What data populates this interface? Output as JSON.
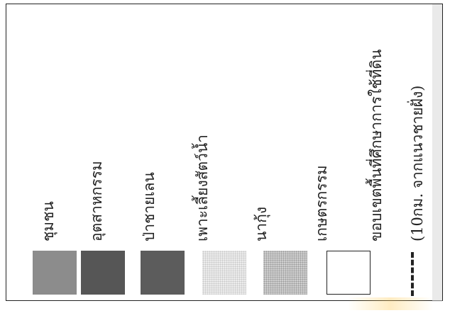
{
  "legend": {
    "items": [
      {
        "label": "ชุมชน",
        "swatch": "solid",
        "color": "#8c8c8c"
      },
      {
        "label": "อุตสาหกรรม",
        "swatch": "solid",
        "color": "#565656"
      },
      {
        "label": "ป่าชายเลน",
        "swatch": "solid",
        "color": "#5c5c5c"
      },
      {
        "label": "เพาะเลี้ยงสัตว์น้ำ",
        "swatch": "stipple-light",
        "color": "#e6e6e6"
      },
      {
        "label": "นากุ้ง",
        "swatch": "stipple-dark",
        "color": "#bdbdbd"
      },
      {
        "label": "เกษตรกรรม",
        "swatch": "outline",
        "color": "#ffffff"
      },
      {
        "label": "ขอบเขตพื้นที่ศึกษาการใช้ที่ดิน",
        "swatch": "dashed-line",
        "color": "#222222"
      }
    ],
    "note": "(10กม. จากแนวชายฝั่ง)"
  }
}
